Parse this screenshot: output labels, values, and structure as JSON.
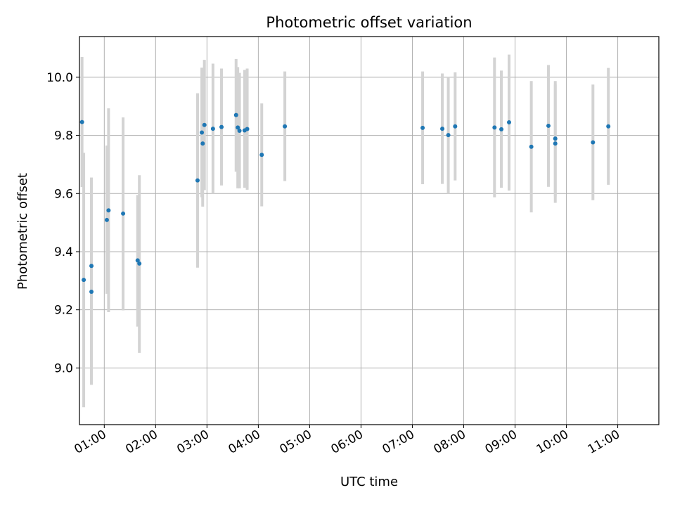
{
  "chart_data": {
    "type": "scatter",
    "title": "Photometric offset variation",
    "xlabel": "UTC time",
    "ylabel": "Photometric offset",
    "grid": true,
    "xlim": [
      "00:31",
      "11:48"
    ],
    "ylim": [
      8.805,
      10.14
    ],
    "x_ticks": [
      "01:00",
      "02:00",
      "03:00",
      "04:00",
      "05:00",
      "06:00",
      "07:00",
      "08:00",
      "09:00",
      "10:00",
      "11:00"
    ],
    "y_ticks": [
      9.0,
      9.2,
      9.4,
      9.6,
      9.8,
      10.0
    ],
    "y_tick_labels": [
      "9.0",
      "9.2",
      "9.4",
      "9.6",
      "9.8",
      "10.0"
    ],
    "series": [
      {
        "points": [
          {
            "x": "00:34",
            "y": 9.846,
            "ylow": 9.622,
            "yhigh": 10.07
          },
          {
            "x": "00:36",
            "y": 9.303,
            "ylow": 8.865,
            "yhigh": 9.74
          },
          {
            "x": "00:45",
            "y": 9.262,
            "ylow": 8.942,
            "yhigh": 9.655
          },
          {
            "x": "00:45",
            "y": 9.351,
            "ylow": 9.021,
            "yhigh": 9.608
          },
          {
            "x": "01:03",
            "y": 9.509,
            "ylow": 9.255,
            "yhigh": 9.765
          },
          {
            "x": "01:05",
            "y": 9.542,
            "ylow": 9.192,
            "yhigh": 9.893
          },
          {
            "x": "01:22",
            "y": 9.531,
            "ylow": 9.198,
            "yhigh": 9.862
          },
          {
            "x": "01:39",
            "y": 9.37,
            "ylow": 9.142,
            "yhigh": 9.595
          },
          {
            "x": "01:41",
            "y": 9.359,
            "ylow": 9.052,
            "yhigh": 9.663
          },
          {
            "x": "02:49",
            "y": 9.645,
            "ylow": 9.345,
            "yhigh": 9.945
          },
          {
            "x": "02:54",
            "y": 9.81,
            "ylow": 9.587,
            "yhigh": 10.033
          },
          {
            "x": "02:55",
            "y": 9.772,
            "ylow": 9.555,
            "yhigh": 9.988
          },
          {
            "x": "02:57",
            "y": 9.836,
            "ylow": 9.612,
            "yhigh": 10.06
          },
          {
            "x": "03:07",
            "y": 9.823,
            "ylow": 9.6,
            "yhigh": 10.047
          },
          {
            "x": "03:17",
            "y": 9.829,
            "ylow": 9.628,
            "yhigh": 10.03
          },
          {
            "x": "03:34",
            "y": 9.87,
            "ylow": 9.675,
            "yhigh": 10.063
          },
          {
            "x": "03:36",
            "y": 9.827,
            "ylow": 9.618,
            "yhigh": 10.035
          },
          {
            "x": "03:38",
            "y": 9.816,
            "ylow": 9.618,
            "yhigh": 10.015
          },
          {
            "x": "03:44",
            "y": 9.817,
            "ylow": 9.62,
            "yhigh": 10.025
          },
          {
            "x": "03:47",
            "y": 9.822,
            "ylow": 9.613,
            "yhigh": 10.03
          },
          {
            "x": "04:04",
            "y": 9.733,
            "ylow": 9.556,
            "yhigh": 9.91
          },
          {
            "x": "04:31",
            "y": 9.831,
            "ylow": 9.643,
            "yhigh": 10.02
          },
          {
            "x": "07:12",
            "y": 9.826,
            "ylow": 9.632,
            "yhigh": 10.02
          },
          {
            "x": "07:35",
            "y": 9.823,
            "ylow": 9.633,
            "yhigh": 10.013
          },
          {
            "x": "07:42",
            "y": 9.801,
            "ylow": 9.6,
            "yhigh": 10.002
          },
          {
            "x": "07:50",
            "y": 9.831,
            "ylow": 9.645,
            "yhigh": 10.017
          },
          {
            "x": "08:36",
            "y": 9.827,
            "ylow": 9.587,
            "yhigh": 10.068
          },
          {
            "x": "08:44",
            "y": 9.821,
            "ylow": 9.62,
            "yhigh": 10.023
          },
          {
            "x": "08:53",
            "y": 9.845,
            "ylow": 9.61,
            "yhigh": 10.078
          },
          {
            "x": "09:19",
            "y": 9.761,
            "ylow": 9.535,
            "yhigh": 9.987
          },
          {
            "x": "09:39",
            "y": 9.833,
            "ylow": 9.623,
            "yhigh": 10.042
          },
          {
            "x": "09:47",
            "y": 9.789,
            "ylow": 9.59,
            "yhigh": 9.987
          },
          {
            "x": "09:47",
            "y": 9.772,
            "ylow": 9.568,
            "yhigh": 9.975
          },
          {
            "x": "10:31",
            "y": 9.776,
            "ylow": 9.577,
            "yhigh": 9.975
          },
          {
            "x": "10:49",
            "y": 9.831,
            "ylow": 9.63,
            "yhigh": 10.032
          }
        ]
      }
    ],
    "colors": {
      "point": "#1f77b4",
      "errorbar": "#d3d3d3",
      "grid": "#b0b0b0",
      "axes": "#000000"
    }
  }
}
